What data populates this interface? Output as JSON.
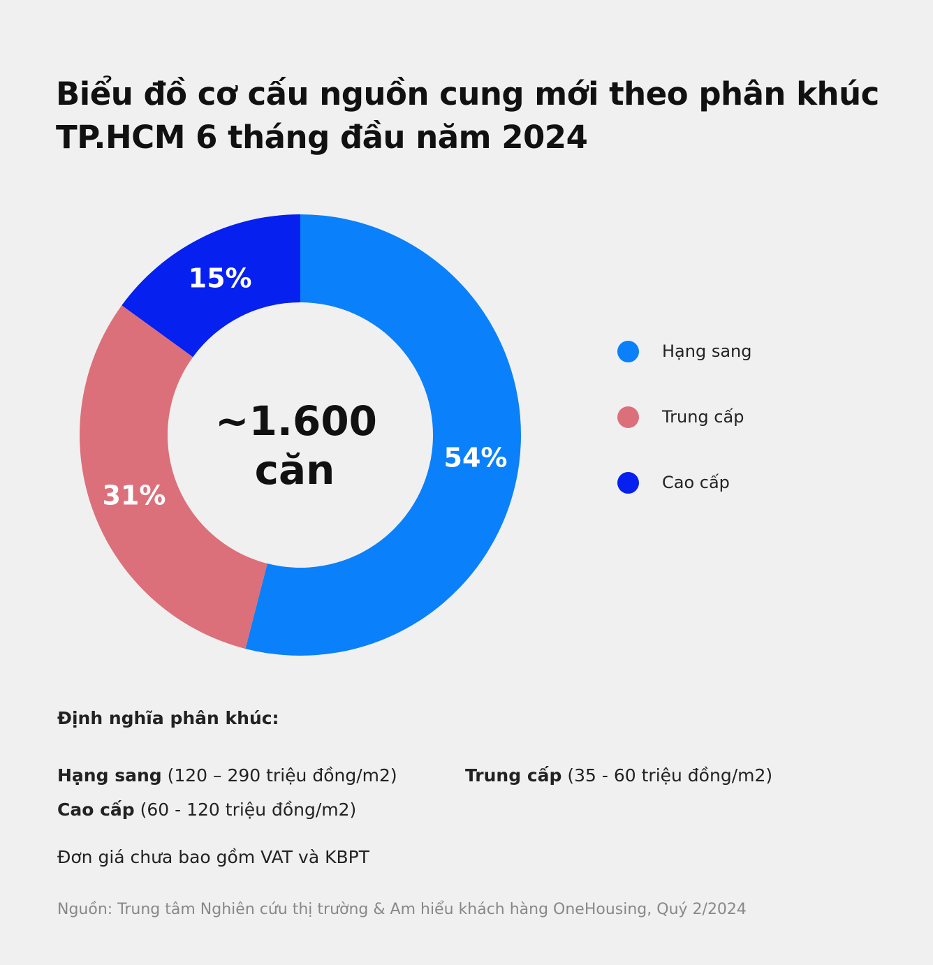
{
  "title": {
    "line1": "Biểu đồ cơ cấu nguồn cung mới theo phân khúc",
    "line2": "TP.HCM 6 tháng đầu năm 2024"
  },
  "chart_data": {
    "type": "pie",
    "variant": "donut",
    "center_label": {
      "line1": "~1.600",
      "line2": "căn"
    },
    "slices": [
      {
        "name": "Hạng sang",
        "value": 54,
        "label": "54%",
        "color": "#0a80fb"
      },
      {
        "name": "Trung cấp",
        "value": 31,
        "label": "31%",
        "color": "#dc707a"
      },
      {
        "name": "Cao cấp",
        "value": 15,
        "label": "15%",
        "color": "#0520ef"
      }
    ],
    "legend_position": "right"
  },
  "legend": [
    {
      "label": "Hạng sang",
      "color": "#0a80fb"
    },
    {
      "label": "Trung cấp",
      "color": "#dc707a"
    },
    {
      "label": "Cao cấp",
      "color": "#0520ef"
    }
  ],
  "definitions": {
    "heading": "Định nghĩa phân khúc:",
    "luxury": {
      "name": "Hạng sang",
      "range": "(120 – 290 triệu đồng/m2)"
    },
    "mid": {
      "name": "Trung cấp",
      "range": "(35 - 60 triệu đồng/m2)"
    },
    "high": {
      "name": "Cao cấp",
      "range": "(60 - 120 triệu đồng/m2)"
    }
  },
  "note": "Đơn giá chưa bao gồm VAT và KBPT",
  "source": "Nguồn: Trung tâm Nghiên cứu thị trường & Am hiểu khách hàng OneHousing, Quý 2/2024"
}
